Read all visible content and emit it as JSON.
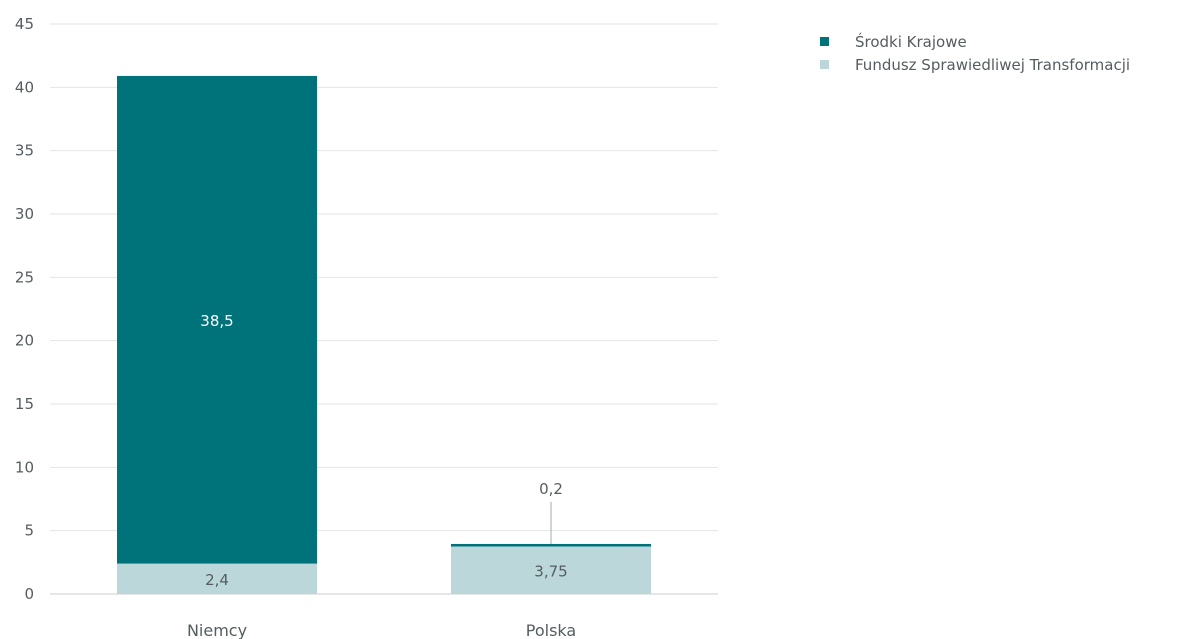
{
  "chart_data": {
    "type": "bar",
    "stacked": true,
    "categories": [
      "Niemcy",
      "Polska"
    ],
    "series": [
      {
        "name": "Fundusz Sprawiedliwej Transformacji",
        "values": [
          2.4,
          3.75
        ],
        "labels": [
          "2,4",
          "3,75"
        ],
        "color": "#bcd7d9"
      },
      {
        "name": "Środki Krajowe",
        "values": [
          38.5,
          0.2
        ],
        "labels": [
          "38,5",
          "0,2"
        ],
        "color": "#00727a"
      }
    ],
    "ylim": [
      0,
      45
    ],
    "yticks": [
      "0",
      "5",
      "10",
      "15",
      "20",
      "25",
      "30",
      "35",
      "40",
      "45"
    ],
    "grid": true,
    "legend_position": "top-right",
    "title": "",
    "xlabel": "",
    "ylabel": ""
  },
  "legend": {
    "items": [
      {
        "label": "Środki Krajowe",
        "color": "#00727a"
      },
      {
        "label": "Fundusz Sprawiedliwej Transformacji",
        "color": "#bcd7d9"
      }
    ]
  }
}
